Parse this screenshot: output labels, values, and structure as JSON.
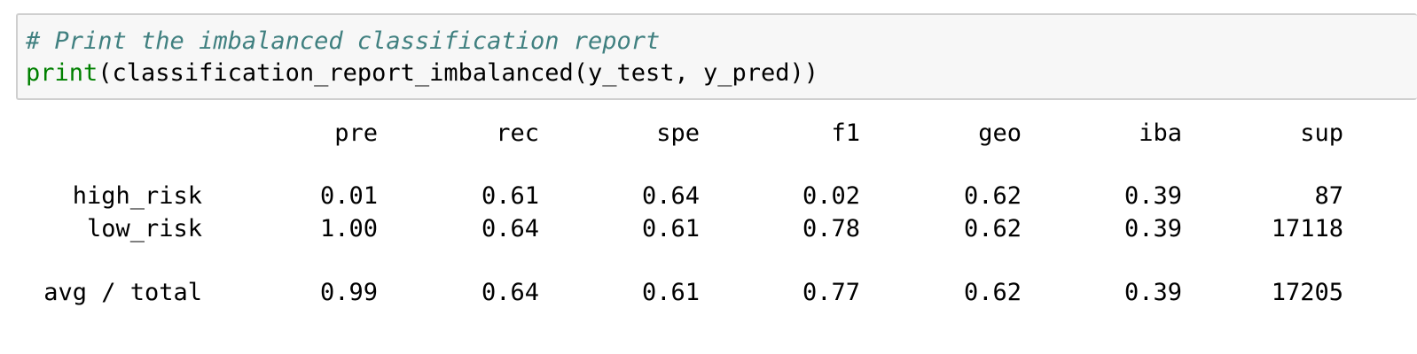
{
  "code": {
    "comment": "# Print the imbalanced classification report",
    "builtin": "print",
    "rest": "(classification_report_imbalanced(y_test, y_pred))"
  },
  "report": {
    "headers": [
      "pre",
      "rec",
      "spe",
      "f1",
      "geo",
      "iba",
      "sup"
    ],
    "rows": [
      {
        "label": "high_risk",
        "values": [
          "0.01",
          "0.61",
          "0.64",
          "0.02",
          "0.62",
          "0.39",
          "87"
        ]
      },
      {
        "label": "low_risk",
        "values": [
          "1.00",
          "0.64",
          "0.61",
          "0.78",
          "0.62",
          "0.39",
          "17118"
        ]
      },
      {
        "label": "avg / total",
        "values": [
          "0.99",
          "0.64",
          "0.61",
          "0.77",
          "0.62",
          "0.39",
          "17205"
        ]
      }
    ]
  }
}
